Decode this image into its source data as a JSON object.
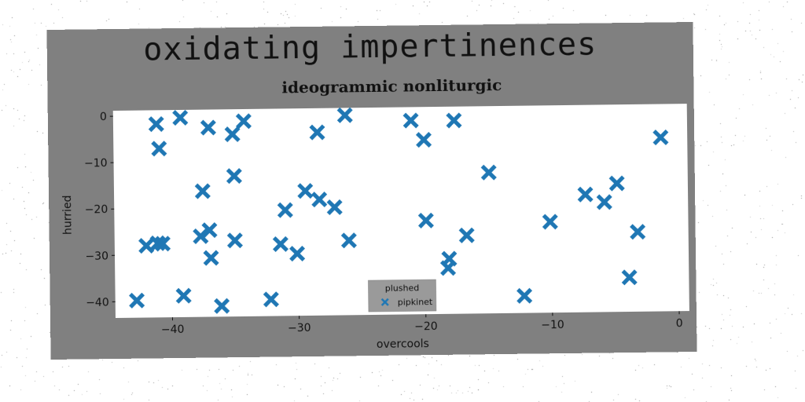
{
  "figure": {
    "suptitle": "oxidating impertinences",
    "background": "#808080"
  },
  "chart_data": {
    "type": "scatter",
    "title": "ideogrammic nonliturgic",
    "xlabel": "overcools",
    "ylabel": "hurried",
    "xlim": [
      -44.5,
      0.8
    ],
    "ylim": [
      -43.5,
      1.2
    ],
    "xticks": [
      -40,
      -30,
      -20,
      -10,
      0
    ],
    "yticks": [
      0,
      -10,
      -20,
      -30,
      -40
    ],
    "grid": false,
    "legend": {
      "title": "plushed",
      "position": "bottom-center"
    },
    "marker": "X",
    "series": [
      {
        "name": "pipkinet",
        "color": "#1f77b4",
        "points": [
          [
            -39.2,
            -0.5
          ],
          [
            -41.1,
            -1.8
          ],
          [
            -37.0,
            -2.7
          ],
          [
            -34.2,
            -1.4
          ],
          [
            -35.1,
            -4.2
          ],
          [
            -40.9,
            -7.1
          ],
          [
            -26.2,
            -0.4
          ],
          [
            -28.4,
            -4.0
          ],
          [
            -21.0,
            -1.7
          ],
          [
            -17.6,
            -1.8
          ],
          [
            -20.0,
            -5.9
          ],
          [
            -1.3,
            -6.0
          ],
          [
            -35.0,
            -13.2
          ],
          [
            -37.5,
            -16.4
          ],
          [
            -14.9,
            -13.1
          ],
          [
            -29.4,
            -16.6
          ],
          [
            -28.3,
            -18.5
          ],
          [
            -27.1,
            -20.2
          ],
          [
            -7.3,
            -18.1
          ],
          [
            -5.8,
            -19.8
          ],
          [
            -4.8,
            -15.8
          ],
          [
            -31.0,
            -20.7
          ],
          [
            -19.9,
            -23.3
          ],
          [
            -10.1,
            -23.9
          ],
          [
            -37.0,
            -24.8
          ],
          [
            -37.7,
            -26.1
          ],
          [
            -40.7,
            -27.6
          ],
          [
            -42.0,
            -28.0
          ],
          [
            -41.1,
            -27.5
          ],
          [
            -35.0,
            -27.1
          ],
          [
            -31.4,
            -28.0
          ],
          [
            -30.1,
            -30.1
          ],
          [
            -36.9,
            -30.8
          ],
          [
            -26.0,
            -27.4
          ],
          [
            -16.7,
            -26.6
          ],
          [
            -3.2,
            -26.3
          ],
          [
            -18.1,
            -31.6
          ],
          [
            -18.2,
            -33.6
          ],
          [
            -42.8,
            -39.8
          ],
          [
            -39.1,
            -38.9
          ],
          [
            -36.1,
            -41.2
          ],
          [
            -32.2,
            -39.9
          ],
          [
            -12.2,
            -39.8
          ],
          [
            -3.9,
            -36.1
          ]
        ]
      }
    ]
  }
}
